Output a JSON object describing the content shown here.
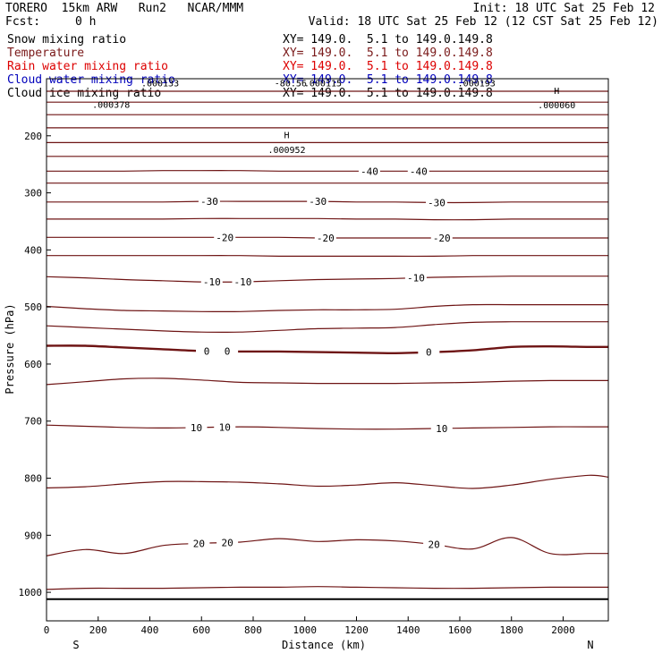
{
  "header": {
    "model": "TORERO  15km ARW   Run2   NCAR/MMM",
    "init": "Init: 18 UTC Sat 25 Feb 12",
    "fcst_label": "Fcst:",
    "fcst_value": "0 h",
    "valid": "Valid: 18 UTC Sat 25 Feb 12 (12 CST Sat 25 Feb 12)"
  },
  "colors": {
    "snow": "#000000",
    "temperature": "#7a1a1a",
    "rain": "#dd0000",
    "cloud_water": "#0000bb",
    "cloud_ice": "#000000",
    "contour": "#6e1414"
  },
  "legend": [
    {
      "name": "Snow mixing ratio",
      "coords": "XY= 149.0.  5.1 to 149.0.149.8",
      "color_key": "snow"
    },
    {
      "name": "Temperature",
      "coords": "XY= 149.0.  5.1 to 149.0.149.8",
      "color_key": "temperature"
    },
    {
      "name": "Rain water mixing ratio",
      "coords": "XY= 149.0.  5.1 to 149.0.149.8",
      "color_key": "rain"
    },
    {
      "name": "Cloud water mixing ratio",
      "coords": "XY= 149.0.  5.1 to 149.0.149.8",
      "color_key": "cloud_water"
    },
    {
      "name": "Cloud ice mixing ratio",
      "coords": "XY= 149.0.  5.1 to 149.0.149.8",
      "color_key": "cloud_ice"
    }
  ],
  "chart_data": {
    "type": "line",
    "xlabel": "Distance (km)",
    "ylabel": "Pressure (hPa)",
    "xlim": [
      0,
      2175
    ],
    "ylim": [
      1050,
      100
    ],
    "x_ticks": [
      0,
      200,
      400,
      600,
      800,
      1000,
      1200,
      1400,
      1600,
      1800,
      2000
    ],
    "y_ticks": [
      200,
      300,
      400,
      500,
      600,
      700,
      800,
      900,
      1000
    ],
    "x_end_labels": {
      "left": "S",
      "right": "N"
    },
    "surface_pressure": 1012,
    "x_nodes": [
      0,
      150,
      300,
      450,
      600,
      750,
      900,
      1050,
      1200,
      1350,
      1500,
      1650,
      1800,
      1950,
      2100,
      2175
    ],
    "isotherms": [
      {
        "y": [
          122,
          122,
          122,
          122,
          122,
          122,
          122,
          122,
          122,
          122,
          122,
          122,
          122,
          122,
          122,
          122
        ]
      },
      {
        "y": [
          141,
          141,
          141,
          141,
          141,
          141,
          141,
          141,
          141,
          141,
          141,
          141,
          141,
          141,
          141,
          141
        ]
      },
      {
        "y": [
          163,
          163,
          163,
          163,
          163,
          163,
          163,
          163,
          163,
          163,
          163,
          163,
          163,
          163,
          163,
          163
        ]
      },
      {
        "y": [
          186,
          186,
          186,
          186,
          186,
          186,
          186,
          186,
          186,
          186,
          186,
          186,
          186,
          186,
          186,
          186
        ]
      },
      {
        "y": [
          212,
          212,
          212,
          212,
          212,
          212,
          212,
          212,
          212,
          212,
          212,
          212,
          212,
          212,
          212,
          212
        ]
      },
      {
        "y": [
          236,
          236,
          236,
          236,
          236,
          236,
          236,
          236,
          236,
          236,
          236,
          236,
          236,
          236,
          236,
          236
        ]
      },
      {
        "value": -40,
        "labels_at": [
          1250,
          1440
        ],
        "y": [
          262,
          262,
          262,
          261,
          261,
          261,
          262,
          262,
          262,
          262,
          262,
          262,
          262,
          262,
          262,
          262
        ]
      },
      {
        "y": [
          283,
          283,
          283,
          283,
          283,
          283,
          283,
          283,
          283,
          283,
          283,
          283,
          283,
          283,
          283,
          283
        ]
      },
      {
        "value": -30,
        "labels_at": [
          630,
          1050,
          1510
        ],
        "y": [
          316,
          316,
          316,
          316,
          315,
          315,
          315,
          315,
          316,
          316,
          317,
          317,
          316,
          316,
          316,
          316
        ]
      },
      {
        "y": [
          346,
          346,
          346,
          346,
          345,
          345,
          345,
          345,
          346,
          346,
          347,
          347,
          346,
          346,
          346,
          346
        ]
      },
      {
        "value": -20,
        "labels_at": [
          690,
          1080,
          1530
        ],
        "y": [
          378,
          378,
          378,
          378,
          378,
          378,
          378,
          379,
          379,
          379,
          379,
          379,
          379,
          379,
          379,
          379
        ]
      },
      {
        "y": [
          410,
          410,
          410,
          410,
          410,
          410,
          411,
          411,
          411,
          411,
          411,
          410,
          410,
          410,
          410,
          410
        ]
      },
      {
        "value": -10,
        "labels_at": [
          640,
          760,
          1430
        ],
        "y": [
          447,
          449,
          452,
          454,
          456,
          456,
          454,
          452,
          451,
          450,
          448,
          447,
          446,
          446,
          446,
          446
        ]
      },
      {
        "y": [
          499,
          503,
          506,
          507,
          508,
          508,
          506,
          505,
          505,
          504,
          499,
          496,
          496,
          496,
          496,
          496
        ]
      },
      {
        "y": [
          533,
          536,
          539,
          542,
          544,
          544,
          541,
          538,
          537,
          536,
          531,
          527,
          526,
          526,
          526,
          526
        ]
      },
      {
        "value": 0,
        "thick": true,
        "labels_at": [
          620,
          700,
          1480
        ],
        "y": [
          568,
          568,
          571,
          574,
          577,
          578,
          578,
          579,
          580,
          581,
          579,
          576,
          570,
          569,
          570,
          570
        ]
      },
      {
        "y": [
          636,
          631,
          626,
          625,
          628,
          632,
          633,
          634,
          634,
          634,
          633,
          632,
          630,
          629,
          629,
          629
        ]
      },
      {
        "value": 10,
        "labels_at": [
          580,
          690,
          1530
        ],
        "y": [
          707,
          709,
          711,
          712,
          711,
          710,
          711,
          713,
          714,
          714,
          713,
          712,
          711,
          710,
          710,
          710
        ]
      },
      {
        "y": [
          817,
          815,
          810,
          806,
          806,
          807,
          810,
          814,
          812,
          808,
          813,
          818,
          812,
          802,
          795,
          798
        ]
      },
      {
        "value": 20,
        "labels_at": [
          590,
          700,
          1500
        ],
        "y": [
          936,
          925,
          932,
          918,
          914,
          912,
          906,
          911,
          908,
          910,
          916,
          924,
          904,
          932,
          932,
          932
        ]
      },
      {
        "y": [
          995,
          993,
          993,
          993,
          992,
          991,
          991,
          990,
          991,
          992,
          993,
          993,
          992,
          991,
          991,
          991
        ]
      }
    ],
    "annotations": [
      {
        "text": "H",
        "x": 930,
        "y": 204
      },
      {
        "text": ".000952",
        "x": 930,
        "y": 230
      },
      {
        "text": "H",
        "x": 1975,
        "y": 127
      },
      {
        "text": ".000060",
        "x": 1975,
        "y": 152
      },
      {
        "text": ".000378",
        "x": 250,
        "y": 151
      },
      {
        "text": ".000133",
        "x": 440,
        "y": 113
      },
      {
        "text": "-80.56",
        "x": 945,
        "y": 113
      },
      {
        "text": ".000115",
        "x": 1070,
        "y": 113
      },
      {
        "text": ".000193",
        "x": 1665,
        "y": 113
      }
    ]
  }
}
